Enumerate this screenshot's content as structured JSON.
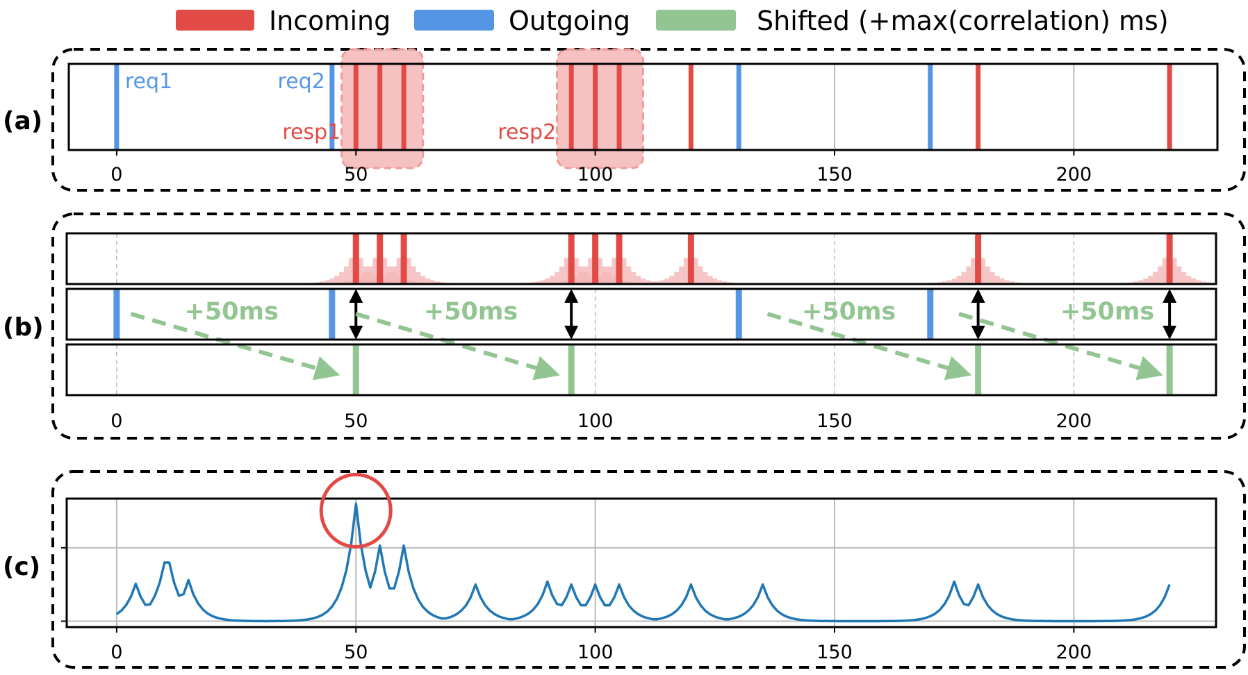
{
  "legend": [
    {
      "label": "Incoming",
      "color": "#e24a45"
    },
    {
      "label": "Outgoing",
      "color": "#5595e6"
    },
    {
      "label": "Shifted (+max(correlation) ms)",
      "color": "#93c592"
    }
  ],
  "panels": {
    "a": "(a)",
    "b": "(b)",
    "c": "(c)"
  },
  "colors": {
    "incoming": "#e24a45",
    "outgoing": "#5595e6",
    "shifted": "#93c592",
    "curve": "#2077b4",
    "highlight": "#f4b6b6",
    "circle": "#e24a45"
  },
  "chart_data": {
    "type": "line",
    "xlim": [
      -10,
      230
    ],
    "xticks": [
      0,
      50,
      100,
      150,
      200
    ],
    "outgoing": [
      0,
      45,
      130,
      170
    ],
    "incoming": [
      50,
      55,
      60,
      95,
      100,
      105,
      120,
      180,
      220
    ],
    "shifted": [
      50,
      95,
      180,
      220
    ],
    "annotations_a": [
      {
        "text": "req1",
        "x": 0,
        "color": "outgoing"
      },
      {
        "text": "req2",
        "x": 45,
        "color": "outgoing"
      },
      {
        "text": "resp1",
        "x": 50,
        "color": "incoming"
      },
      {
        "text": "resp2",
        "x": 95,
        "color": "incoming"
      }
    ],
    "highlight_ranges": [
      [
        47,
        64
      ],
      [
        92,
        110
      ]
    ],
    "shift_arrows": [
      {
        "from": 3,
        "to": 45,
        "label": "+50ms",
        "label_x": 24
      },
      {
        "from": 50,
        "to": 91,
        "label": "+50ms",
        "label_x": 74
      },
      {
        "from": 136,
        "to": 177,
        "label": "+50ms",
        "label_x": 153
      },
      {
        "from": 176,
        "to": 217,
        "label": "+50ms",
        "label_x": 207
      }
    ],
    "correlation": {
      "ylim": [
        -0.08,
        1.67
      ],
      "yticks": [
        0,
        1
      ],
      "start_value": 0.09,
      "peaks": [
        [
          4,
          0.51
        ],
        [
          10,
          0.8
        ],
        [
          11,
          0.8
        ],
        [
          15,
          0.56
        ],
        [
          50,
          1.6
        ],
        [
          55,
          1.03
        ],
        [
          60,
          1.03
        ],
        [
          75,
          0.5
        ],
        [
          90,
          0.54
        ],
        [
          95,
          0.5
        ],
        [
          100,
          0.5
        ],
        [
          105,
          0.5
        ],
        [
          120,
          0.5
        ],
        [
          135,
          0.5
        ],
        [
          175,
          0.54
        ],
        [
          180,
          0.5
        ],
        [
          220,
          0.5
        ]
      ],
      "max_lag": 50
    }
  }
}
